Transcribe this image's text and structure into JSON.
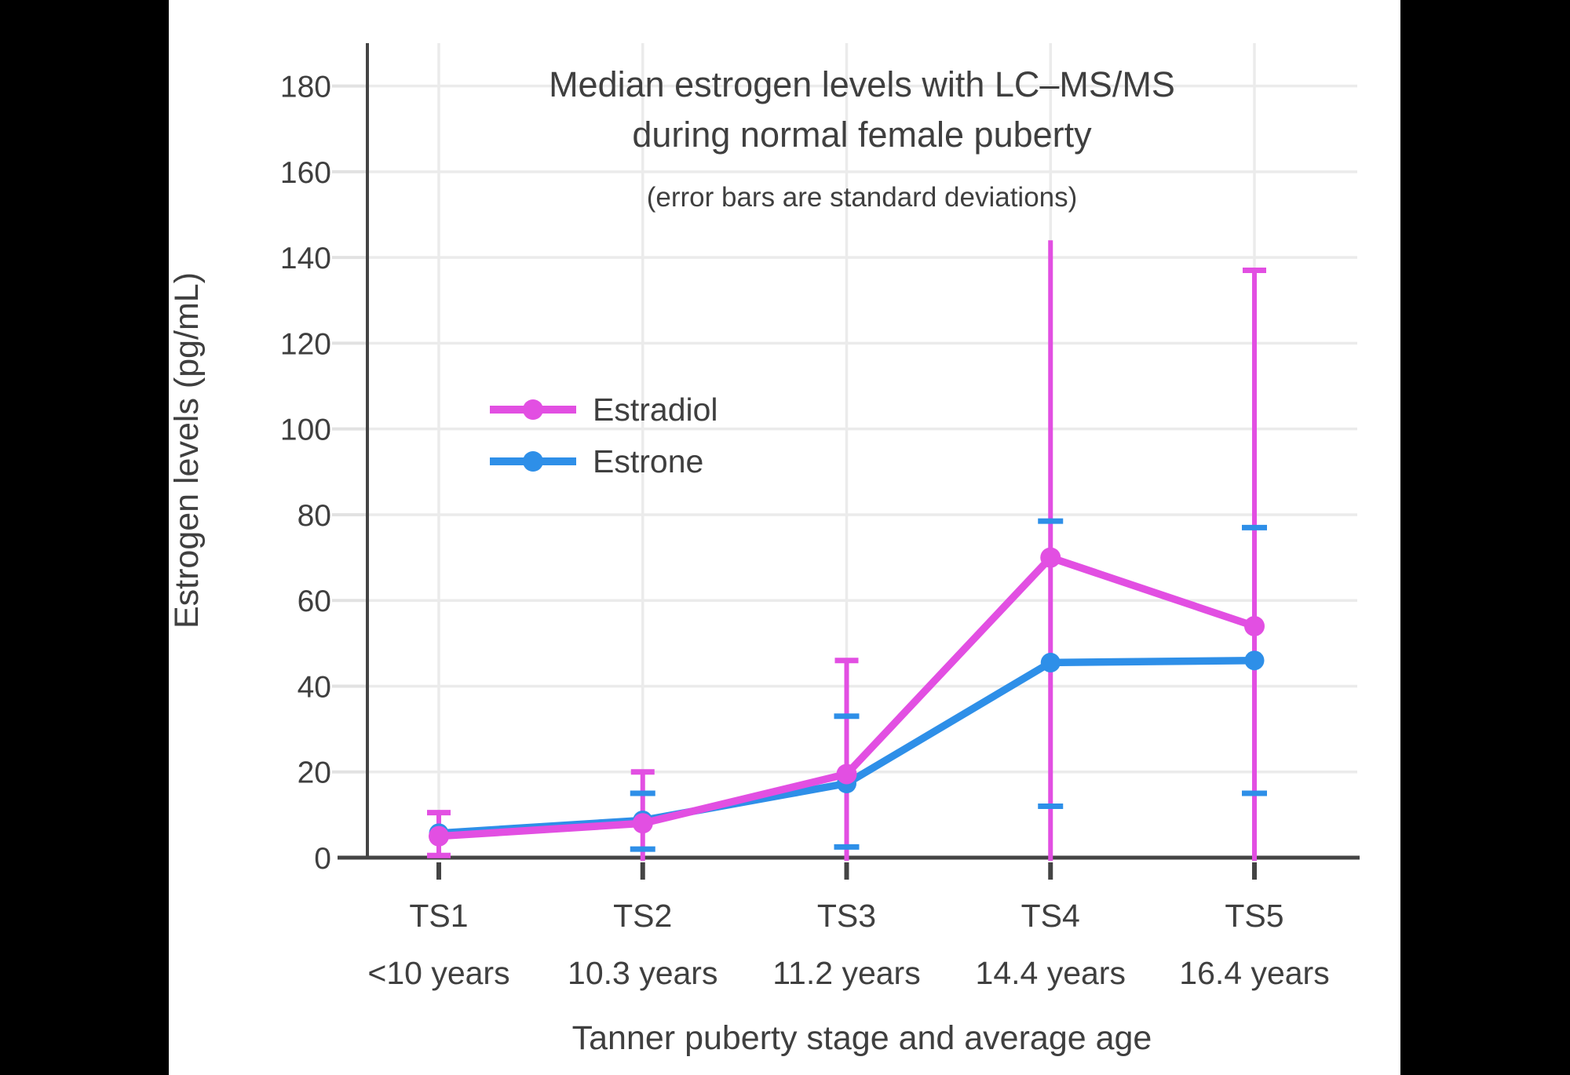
{
  "frame": {
    "panel_background": "#ffffff",
    "letterbox_color": "#000000",
    "text_color": "#3f3f3f",
    "gridline_color": "#ebebeb",
    "axis_color": "#444444"
  },
  "chart_data": {
    "type": "line",
    "title_line1": "Median estrogen levels with LC–MS/MS",
    "title_line2": "during normal female puberty",
    "subtitle": "(error bars are standard deviations)",
    "xlabel": "Tanner puberty stage and average age",
    "ylabel": "Estrogen levels (pg/mL)",
    "categories": [
      "TS1",
      "TS2",
      "TS3",
      "TS4",
      "TS5"
    ],
    "category_sublabels": [
      "<10 years",
      "10.3 years",
      "11.2 years",
      "14.4 years",
      "16.4 years"
    ],
    "y_ticks": [
      0,
      20,
      40,
      60,
      80,
      100,
      120,
      140,
      160,
      180
    ],
    "ylim": [
      0,
      190
    ],
    "grid": true,
    "legend_position": "inside-upper-left",
    "series": [
      {
        "name": "Estradiol",
        "color": "#e24fe2",
        "values": [
          5,
          8,
          19.5,
          70,
          54
        ],
        "error_upper": [
          10.5,
          20,
          46,
          144,
          137
        ],
        "error_lower": [
          0.5,
          0,
          0,
          0,
          0
        ],
        "upper_caps": [
          true,
          true,
          true,
          false,
          true
        ],
        "lower_caps": [
          true,
          false,
          false,
          false,
          false
        ]
      },
      {
        "name": "Estrone",
        "color": "#2e8fe8",
        "values": [
          5.7,
          8.7,
          17.3,
          45.5,
          46
        ],
        "error_upper": [
          null,
          15,
          33,
          78.5,
          77
        ],
        "error_lower": [
          null,
          2,
          2.5,
          12,
          15
        ],
        "upper_caps": [
          false,
          true,
          true,
          true,
          true
        ],
        "lower_caps": [
          false,
          true,
          true,
          true,
          true
        ]
      }
    ]
  }
}
